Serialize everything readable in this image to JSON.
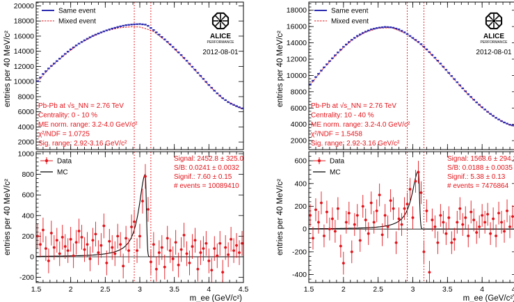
{
  "figure": {
    "date": "2012-08-01",
    "logo_main": "ALICE",
    "logo_sub": "PERFORMANCE",
    "xlabel": "m_ee (GeV/c²)"
  },
  "chart_data": [
    {
      "id": "left-top",
      "type": "scatter",
      "title": "",
      "ylabel": "entries per 40 MeV/c²",
      "xlabel": "",
      "xlim": [
        1.5,
        4.5
      ],
      "ylim": [
        1000,
        20500
      ],
      "xticks": [
        1.5,
        2,
        2.5,
        3,
        3.5,
        4,
        4.5
      ],
      "yticks": [
        2000,
        4000,
        6000,
        8000,
        10000,
        12000,
        14000,
        16000,
        18000,
        20000
      ],
      "vlines": [
        2.92,
        3.16
      ],
      "legend": [
        {
          "label": "Same event",
          "color": "#2b2bb0"
        },
        {
          "label": "Mixed event",
          "color": "#e3131a"
        }
      ],
      "annotations": [
        "Pb-Pb at √s_NN = 2.76 TeV",
        "Centrality: 0 - 10 %",
        "ME norm. range: 3.2-4.0 GeV/c²",
        "χ²/NDF = 1.0725",
        "Sig. range: 2.92-3.16 GeV/c²"
      ],
      "curve": {
        "peak_x": 2.95,
        "peak_y": 17200,
        "start_y": 10050,
        "end_y": 6400,
        "peak_bump": 400
      },
      "series": [
        {
          "name": "Same event",
          "x": [
            1.52,
            1.6,
            1.7,
            1.8,
            1.9,
            2.0,
            2.1,
            2.2,
            2.3,
            2.4,
            2.5,
            2.6,
            2.7,
            2.8,
            2.9,
            3.0,
            3.1,
            3.2,
            3.3,
            3.4,
            3.5,
            3.6,
            3.7,
            3.8,
            3.9,
            4.0,
            4.1,
            4.2,
            4.3,
            4.4,
            4.48
          ],
          "values": [
            10050,
            11000,
            11900,
            12700,
            13500,
            14250,
            14900,
            15450,
            15950,
            16350,
            16700,
            17000,
            17250,
            17450,
            17550,
            17600,
            17500,
            16800,
            16050,
            15250,
            14400,
            13500,
            12550,
            11550,
            10550,
            9550,
            8600,
            7800,
            7150,
            6750,
            6450
          ]
        },
        {
          "name": "Mixed event",
          "x": [
            1.52,
            1.7,
            1.9,
            2.1,
            2.3,
            2.5,
            2.7,
            2.9,
            3.0,
            3.1,
            3.2,
            3.4,
            3.6,
            3.8,
            4.0,
            4.2,
            4.4,
            4.48
          ],
          "values": [
            10000,
            11850,
            13450,
            14850,
            15900,
            16650,
            17100,
            17250,
            17200,
            16950,
            16600,
            15200,
            13450,
            11500,
            9500,
            7750,
            6700,
            6400
          ]
        }
      ]
    },
    {
      "id": "left-bottom",
      "type": "scatter",
      "title": "",
      "ylabel": "entries per 40 MeV/c²",
      "xlabel": "m_ee (GeV/c²)",
      "xlim": [
        1.5,
        4.5
      ],
      "ylim": [
        -250,
        1020
      ],
      "xticks": [
        1.5,
        2,
        2.5,
        3,
        3.5,
        4,
        4.5
      ],
      "xticklabels": [
        "1.5",
        "2",
        "2.5",
        "3",
        "3.5",
        "4",
        "4.5"
      ],
      "yticks": [
        -200,
        0,
        200,
        400,
        600,
        800,
        1000
      ],
      "vlines": [
        2.92,
        3.16
      ],
      "legend": [
        {
          "label": "Data",
          "color": "#e3131a"
        },
        {
          "label": "MC",
          "color": "#000000"
        }
      ],
      "annotations": [
        "Signal: 2452.8 ± 325.0",
        "S/B: 0.0241 ± 0.0032",
        "Signif.: 7.60 ± 0.15",
        "# events = 10089410"
      ],
      "mc": {
        "peak_x": 3.08,
        "peak_y": 800,
        "scale": 0.31
      },
      "series": [
        {
          "name": "Data",
          "x": [
            1.52,
            1.56,
            1.6,
            1.64,
            1.68,
            1.72,
            1.76,
            1.8,
            1.84,
            1.88,
            1.92,
            1.96,
            2.0,
            2.04,
            2.08,
            2.12,
            2.16,
            2.2,
            2.24,
            2.28,
            2.32,
            2.36,
            2.4,
            2.44,
            2.48,
            2.52,
            2.56,
            2.6,
            2.64,
            2.68,
            2.72,
            2.76,
            2.8,
            2.84,
            2.88,
            2.92,
            2.96,
            3.0,
            3.04,
            3.08,
            3.12,
            3.16,
            3.2,
            3.24,
            3.28,
            3.32,
            3.36,
            3.4,
            3.44,
            3.48,
            3.52,
            3.56,
            3.6,
            3.64,
            3.68,
            3.72,
            3.76,
            3.8,
            3.84,
            3.88,
            3.92,
            3.96,
            4.0,
            4.04,
            4.08,
            4.12,
            4.16,
            4.2,
            4.24,
            4.28,
            4.32,
            4.36,
            4.4,
            4.44,
            4.48
          ],
          "values": [
            200,
            120,
            260,
            80,
            -40,
            230,
            90,
            160,
            30,
            190,
            100,
            60,
            170,
            10,
            140,
            250,
            190,
            70,
            120,
            -20,
            160,
            220,
            40,
            110,
            300,
            -60,
            150,
            90,
            30,
            200,
            120,
            -90,
            180,
            60,
            290,
            340,
            60,
            200,
            540,
            780,
            460,
            -50,
            120,
            -120,
            40,
            90,
            -100,
            180,
            60,
            -20,
            140,
            -80,
            70,
            210,
            30,
            -60,
            100,
            160,
            -120,
            40,
            80,
            130,
            -40,
            -130,
            80,
            10,
            130,
            -150,
            90,
            20,
            170,
            60,
            110,
            40,
            130
          ],
          "errors": [
            120,
            120,
            120,
            120,
            120,
            120,
            120,
            120,
            120,
            120,
            120,
            120,
            120,
            120,
            120,
            120,
            120,
            120,
            120,
            120,
            120,
            120,
            120,
            120,
            120,
            120,
            120,
            120,
            120,
            120,
            120,
            120,
            120,
            120,
            120,
            120,
            120,
            120,
            120,
            120,
            120,
            120,
            120,
            120,
            120,
            120,
            120,
            120,
            120,
            120,
            120,
            120,
            120,
            120,
            120,
            120,
            120,
            120,
            120,
            120,
            120,
            120,
            120,
            120,
            120,
            120,
            120,
            120,
            120,
            120,
            120,
            120,
            120,
            120,
            120
          ]
        }
      ]
    },
    {
      "id": "right-top",
      "type": "scatter",
      "title": "",
      "ylabel": "entries per 40 MeV/c²",
      "xlabel": "",
      "xlim": [
        1.5,
        4.5
      ],
      "ylim": [
        900,
        19000
      ],
      "xticks": [
        1.5,
        2,
        2.5,
        3,
        3.5,
        4,
        4.5
      ],
      "yticks": [
        2000,
        4000,
        6000,
        8000,
        10000,
        12000,
        14000,
        16000,
        18000
      ],
      "vlines": [
        2.92,
        3.16
      ],
      "legend": [
        {
          "label": "Same event",
          "color": "#2b2bb0"
        },
        {
          "label": "Mixed event",
          "color": "#e3131a"
        }
      ],
      "annotations": [
        "Pb-Pb at √s_NN = 2.76 TeV",
        "Centrality: 10 - 40 %",
        "ME norm. range: 3.2-4.0 GeV/c²",
        "χ²/NDF = 1.5458",
        "Sig. range: 2.92-3.16 GeV/c²"
      ],
      "series": [
        {
          "name": "Same event",
          "x": [
            1.52,
            1.6,
            1.7,
            1.8,
            1.9,
            2.0,
            2.1,
            2.2,
            2.3,
            2.4,
            2.5,
            2.6,
            2.7,
            2.8,
            2.9,
            3.0,
            3.1,
            3.2,
            3.3,
            3.4,
            3.5,
            3.6,
            3.7,
            3.8,
            3.9,
            4.0,
            4.1,
            4.2,
            4.3,
            4.4,
            4.48
          ],
          "values": [
            8900,
            9800,
            10800,
            11750,
            12650,
            13500,
            14250,
            14850,
            15300,
            15650,
            15850,
            15950,
            15900,
            15650,
            15200,
            14600,
            14000,
            13200,
            12350,
            11450,
            10500,
            9550,
            8600,
            7700,
            6850,
            6100,
            5400,
            4800,
            4300,
            3950,
            3800
          ]
        },
        {
          "name": "Mixed event",
          "x": [
            1.52,
            1.7,
            1.9,
            2.1,
            2.3,
            2.5,
            2.7,
            2.9,
            3.0,
            3.1,
            3.2,
            3.4,
            3.6,
            3.8,
            4.0,
            4.2,
            4.4,
            4.48
          ],
          "values": [
            8850,
            10750,
            12600,
            14200,
            15250,
            15800,
            15850,
            15150,
            14550,
            13900,
            13150,
            11400,
            9500,
            7650,
            6050,
            4750,
            3900,
            3750
          ]
        }
      ]
    },
    {
      "id": "right-bottom",
      "type": "scatter",
      "title": "",
      "ylabel": "entries per 40 MeV/c²",
      "xlabel": "m_ee (GeV/c²)",
      "xlim": [
        1.5,
        4.5
      ],
      "ylim": [
        -470,
        680
      ],
      "xticks": [
        1.5,
        2,
        2.5,
        3,
        3.5,
        4,
        4.5
      ],
      "xticklabels": [
        "1.5",
        "2",
        "2.5",
        "3",
        "3.5",
        "4",
        "4.5"
      ],
      "yticks": [
        -400,
        -200,
        0,
        200,
        400,
        600
      ],
      "vlines": [
        2.92,
        3.16
      ],
      "legend": [
        {
          "label": "Data",
          "color": "#e3131a"
        },
        {
          "label": "MC",
          "color": "#000000"
        }
      ],
      "annotations": [
        "Signal: 1568.6 ± 294.3",
        "S/B: 0.0188 ± 0.0035",
        "Signif.: 5.38 ± 0.13",
        "# events = 7476864"
      ],
      "mc": {
        "peak_x": 3.08,
        "peak_y": 510,
        "scale": 0.2
      },
      "series": [
        {
          "name": "Data",
          "x": [
            1.52,
            1.56,
            1.6,
            1.64,
            1.68,
            1.72,
            1.76,
            1.8,
            1.84,
            1.88,
            1.92,
            1.96,
            2.0,
            2.04,
            2.08,
            2.12,
            2.16,
            2.2,
            2.24,
            2.28,
            2.32,
            2.36,
            2.4,
            2.44,
            2.48,
            2.52,
            2.56,
            2.6,
            2.64,
            2.68,
            2.72,
            2.76,
            2.8,
            2.84,
            2.88,
            2.92,
            2.96,
            3.0,
            3.04,
            3.08,
            3.12,
            3.16,
            3.2,
            3.24,
            3.28,
            3.32,
            3.36,
            3.4,
            3.44,
            3.48,
            3.52,
            3.56,
            3.6,
            3.64,
            3.68,
            3.72,
            3.76,
            3.8,
            3.84,
            3.88,
            3.92,
            3.96,
            4.0,
            4.04,
            4.08,
            4.12,
            4.16,
            4.2,
            4.24,
            4.28,
            4.32,
            4.36,
            4.4,
            4.44,
            4.48
          ],
          "values": [
            120,
            -80,
            170,
            60,
            230,
            -60,
            150,
            0,
            90,
            -20,
            180,
            -150,
            -300,
            60,
            140,
            -200,
            40,
            120,
            -100,
            200,
            80,
            -40,
            230,
            60,
            160,
            300,
            -50,
            120,
            20,
            250,
            180,
            -120,
            90,
            40,
            180,
            220,
            350,
            100,
            420,
            500,
            320,
            -200,
            160,
            -380,
            80,
            20,
            -120,
            120,
            60,
            -40,
            100,
            -120,
            -90,
            60,
            180,
            40,
            100,
            -60,
            150,
            80,
            -30,
            20,
            120,
            60,
            130,
            -40,
            90,
            -60,
            140,
            60,
            -20,
            160,
            20,
            110,
            -40
          ],
          "errors": [
            100,
            100,
            100,
            100,
            100,
            100,
            100,
            100,
            100,
            100,
            100,
            100,
            100,
            100,
            100,
            100,
            100,
            100,
            100,
            100,
            100,
            100,
            100,
            100,
            100,
            100,
            100,
            100,
            100,
            100,
            100,
            100,
            100,
            100,
            100,
            100,
            100,
            100,
            100,
            100,
            100,
            100,
            100,
            100,
            100,
            100,
            100,
            100,
            100,
            100,
            100,
            100,
            100,
            100,
            100,
            100,
            100,
            100,
            100,
            100,
            100,
            100,
            100,
            100,
            100,
            100,
            100,
            100,
            100,
            100,
            100,
            100,
            100,
            100,
            100
          ]
        }
      ]
    }
  ]
}
